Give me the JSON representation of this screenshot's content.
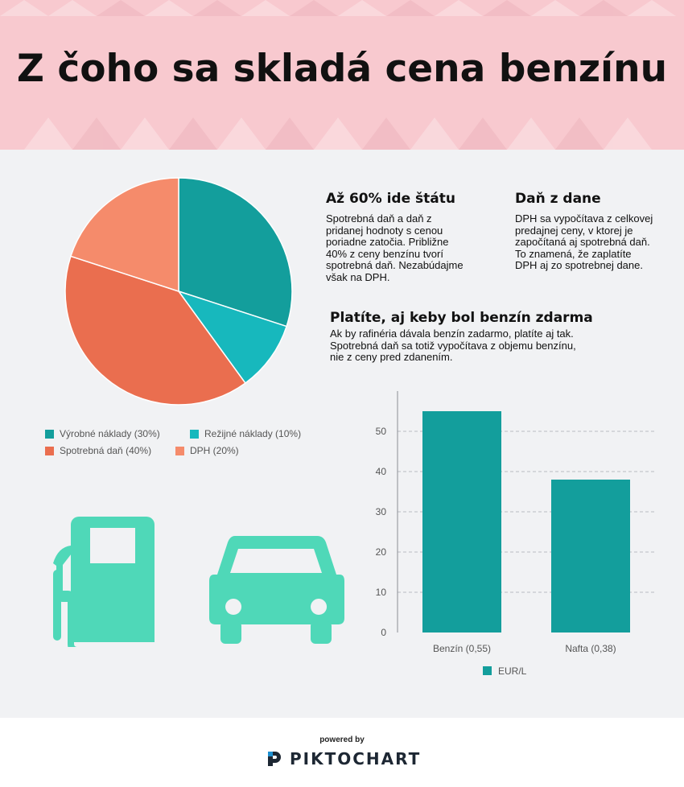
{
  "header": {
    "title": "Z čoho sa skladá cena benzínu",
    "bg_color": "#f8c9cf"
  },
  "blocks": {
    "state_share": {
      "heading": "Až 60% ide štátu",
      "lines": [
        "Spotrebná daň a daň z",
        "pridanej hodnoty  s cenou",
        "poriadne zatočia. Približne",
        "40% z ceny benzínu tvorí",
        "spotrebná daň. Nezabúdajme",
        "však na DPH."
      ]
    },
    "tax_on_tax": {
      "heading": "Daň z dane",
      "lines": [
        "DPH sa vypočítava z celkovej",
        "predajnej ceny, v ktorej je",
        "započítaná aj spotrebná daň.",
        "To znamená, že zaplatíte",
        "DPH aj zo spotrebnej dane."
      ]
    },
    "free_fuel": {
      "heading": "Platíte, aj keby bol benzín zdarma",
      "lines": [
        "Ak by rafinéria dávala benzín zadarmo, platíte aj tak.",
        "Spotrebná daň sa totiž vypočítava z objemu benzínu,",
        "nie z ceny pred zdanením."
      ]
    }
  },
  "icons": [
    "fuel-pump-icon",
    "car-icon"
  ],
  "icon_color": "#4fd8b8",
  "chart_data": [
    {
      "type": "pie",
      "slices": [
        {
          "label": "Výrobné náklady (30%)",
          "value": 30,
          "color": "#139e9c"
        },
        {
          "label": "Režijné náklady (10%)",
          "value": 10,
          "color": "#17b8bd"
        },
        {
          "label": "Spotrebná daň (40%)",
          "value": 40,
          "color": "#ea6e4f"
        },
        {
          "label": "DPH (20%)",
          "value": 20,
          "color": "#f58b6b"
        }
      ],
      "legend_position": "bottom"
    },
    {
      "type": "bar",
      "categories": [
        "Benzín (0,55)",
        "Nafta (0,38)"
      ],
      "series": [
        {
          "name": "EUR/L",
          "values": [
            55,
            38
          ],
          "color": "#139e9c"
        }
      ],
      "ylim": [
        0,
        60
      ],
      "yticks": [
        "0",
        "10",
        "20",
        "30",
        "40",
        "50"
      ],
      "grid": true,
      "legend_position": "bottom"
    }
  ],
  "footer": {
    "powered_by": "powered by",
    "brand": "PIKTOCHART"
  }
}
